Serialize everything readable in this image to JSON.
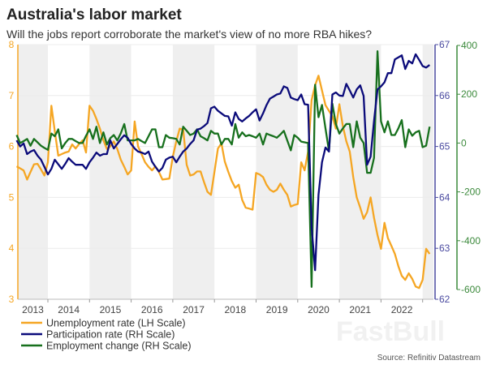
{
  "header": {
    "title": "Australia's labor market",
    "subtitle": "Will the jobs report corroborate the market's view of no more RBA hikes?"
  },
  "footer": {
    "source": "Source: Refinitiv Datastream",
    "watermark": "FastBull"
  },
  "chart_data": {
    "type": "line",
    "title": "Australia's labor market",
    "subtitle": "Will the jobs report corroborate the market's view of no more RBA hikes?",
    "frequency": "monthly",
    "start": "2013-03",
    "x_ticks": [
      "2013",
      "2014",
      "2015",
      "2016",
      "2017",
      "2018",
      "2019",
      "2020",
      "2021",
      "2022"
    ],
    "shaded_years": [
      "2013",
      "2015",
      "2017",
      "2019",
      "2021",
      "2023"
    ],
    "grid": true,
    "legend_position": "bottom-left",
    "axes": {
      "left": {
        "ylim": [
          3,
          8
        ],
        "ticks": [
          "3",
          "4",
          "5",
          "6",
          "7",
          "8"
        ],
        "color": "#f5a623"
      },
      "right1": {
        "ylim": [
          62,
          67
        ],
        "ticks": [
          "62",
          "63",
          "64",
          "65",
          "66",
          "67"
        ],
        "color": "#4b4ba0"
      },
      "right2": {
        "ylim": [
          -600,
          400
        ],
        "ticks": [
          "-600",
          "-400",
          "-200",
          "0",
          "200",
          "400"
        ],
        "color": "#3c8a3c"
      }
    },
    "series": [
      {
        "name": "Unemployment rate (LH Scale)",
        "axis": "left",
        "color": "#f5a623",
        "values": [
          5.61,
          5.57,
          5.53,
          5.35,
          5.5,
          5.65,
          5.66,
          5.55,
          5.43,
          5.69,
          6.8,
          6.3,
          5.82,
          5.85,
          5.88,
          5.9,
          6.04,
          5.96,
          6.05,
          6.12,
          5.88,
          6.8,
          6.7,
          6.54,
          6.35,
          6.12,
          5.95,
          6.0,
          6.1,
          5.95,
          5.74,
          5.6,
          5.45,
          5.53,
          6.49,
          6.0,
          5.85,
          5.69,
          5.6,
          5.53,
          5.61,
          5.5,
          5.35,
          5.36,
          5.37,
          5.8,
          6.1,
          6.35,
          6.33,
          5.64,
          5.43,
          5.45,
          5.51,
          5.51,
          5.3,
          5.11,
          5.05,
          5.5,
          5.96,
          6.06,
          5.7,
          5.5,
          5.32,
          5.19,
          5.25,
          4.95,
          4.8,
          4.78,
          4.76,
          5.48,
          5.45,
          5.4,
          5.25,
          5.15,
          5.11,
          5.15,
          5.27,
          5.15,
          5.05,
          4.82,
          4.85,
          4.87,
          5.69,
          5.53,
          5.9,
          6.91,
          7.2,
          7.39,
          7.1,
          6.81,
          6.7,
          6.59,
          6.35,
          6.83,
          6.4,
          6.1,
          5.9,
          5.4,
          5.0,
          4.8,
          4.58,
          4.71,
          5.0,
          4.6,
          4.26,
          3.99,
          4.5,
          4.2,
          4.05,
          3.89,
          3.65,
          3.46,
          3.38,
          3.51,
          3.4,
          3.25,
          3.22,
          3.38,
          3.99,
          3.89
        ]
      },
      {
        "name": "Participation rate (RH Scale)",
        "axis": "right1",
        "color": "#0b0b7a",
        "values": [
          65.12,
          65.0,
          65.06,
          64.85,
          64.9,
          64.93,
          64.82,
          64.74,
          64.6,
          64.45,
          64.56,
          64.74,
          64.65,
          64.56,
          64.66,
          64.77,
          64.7,
          64.64,
          64.64,
          64.64,
          64.56,
          64.69,
          64.78,
          64.88,
          64.82,
          64.85,
          64.85,
          65.12,
          64.96,
          65.05,
          65.14,
          65.22,
          65.17,
          65.05,
          64.96,
          64.9,
          64.88,
          64.85,
          64.9,
          64.7,
          64.6,
          64.51,
          64.58,
          64.74,
          64.78,
          64.8,
          64.69,
          64.8,
          64.9,
          64.96,
          65.05,
          65.12,
          65.33,
          65.35,
          65.4,
          65.46,
          65.75,
          65.78,
          65.7,
          65.65,
          65.6,
          65.59,
          65.41,
          65.67,
          65.54,
          65.49,
          65.55,
          65.6,
          65.67,
          65.73,
          65.51,
          65.65,
          65.81,
          65.94,
          65.98,
          66.02,
          66.04,
          66.18,
          66.15,
          65.96,
          65.93,
          65.91,
          66.02,
          65.83,
          65.82,
          63.42,
          62.57,
          64.05,
          64.69,
          64.98,
          64.9,
          66.02,
          66.06,
          66.0,
          65.99,
          66.23,
          66.1,
          65.96,
          66.12,
          66.2,
          65.99,
          64.64,
          64.8,
          65.5,
          66.12,
          66.18,
          66.26,
          66.44,
          66.44,
          66.71,
          66.75,
          66.79,
          66.52,
          66.68,
          66.63,
          66.81,
          66.7,
          66.58,
          66.55,
          66.6
        ]
      },
      {
        "name": "Employment change (RH Scale)",
        "axis": "right2",
        "color": "#17701d",
        "values": [
          33,
          0,
          8,
          17,
          -11,
          17,
          3,
          -11,
          -20,
          -28,
          39,
          28,
          56,
          -22,
          0,
          17,
          17,
          8,
          0,
          0,
          30,
          56,
          17,
          67,
          0,
          44,
          -6,
          20,
          33,
          11,
          40,
          78,
          11,
          11,
          11,
          17,
          8,
          0,
          28,
          56,
          56,
          -17,
          -17,
          33,
          22,
          20,
          17,
          -6,
          67,
          50,
          33,
          39,
          56,
          28,
          20,
          11,
          50,
          39,
          39,
          -6,
          17,
          17,
          -6,
          78,
          22,
          44,
          28,
          33,
          28,
          22,
          39,
          -6,
          39,
          33,
          28,
          22,
          35,
          50,
          10,
          -30,
          33,
          22,
          6,
          3,
          0,
          -589,
          239,
          106,
          156,
          60,
          -33,
          161,
          78,
          39,
          60,
          78,
          78,
          -17,
          89,
          22,
          0,
          -122,
          -122,
          -61,
          376,
          89,
          44,
          89,
          33,
          33,
          60,
          94,
          -17,
          56,
          30,
          44,
          50,
          -17,
          -11,
          67
        ]
      }
    ]
  }
}
